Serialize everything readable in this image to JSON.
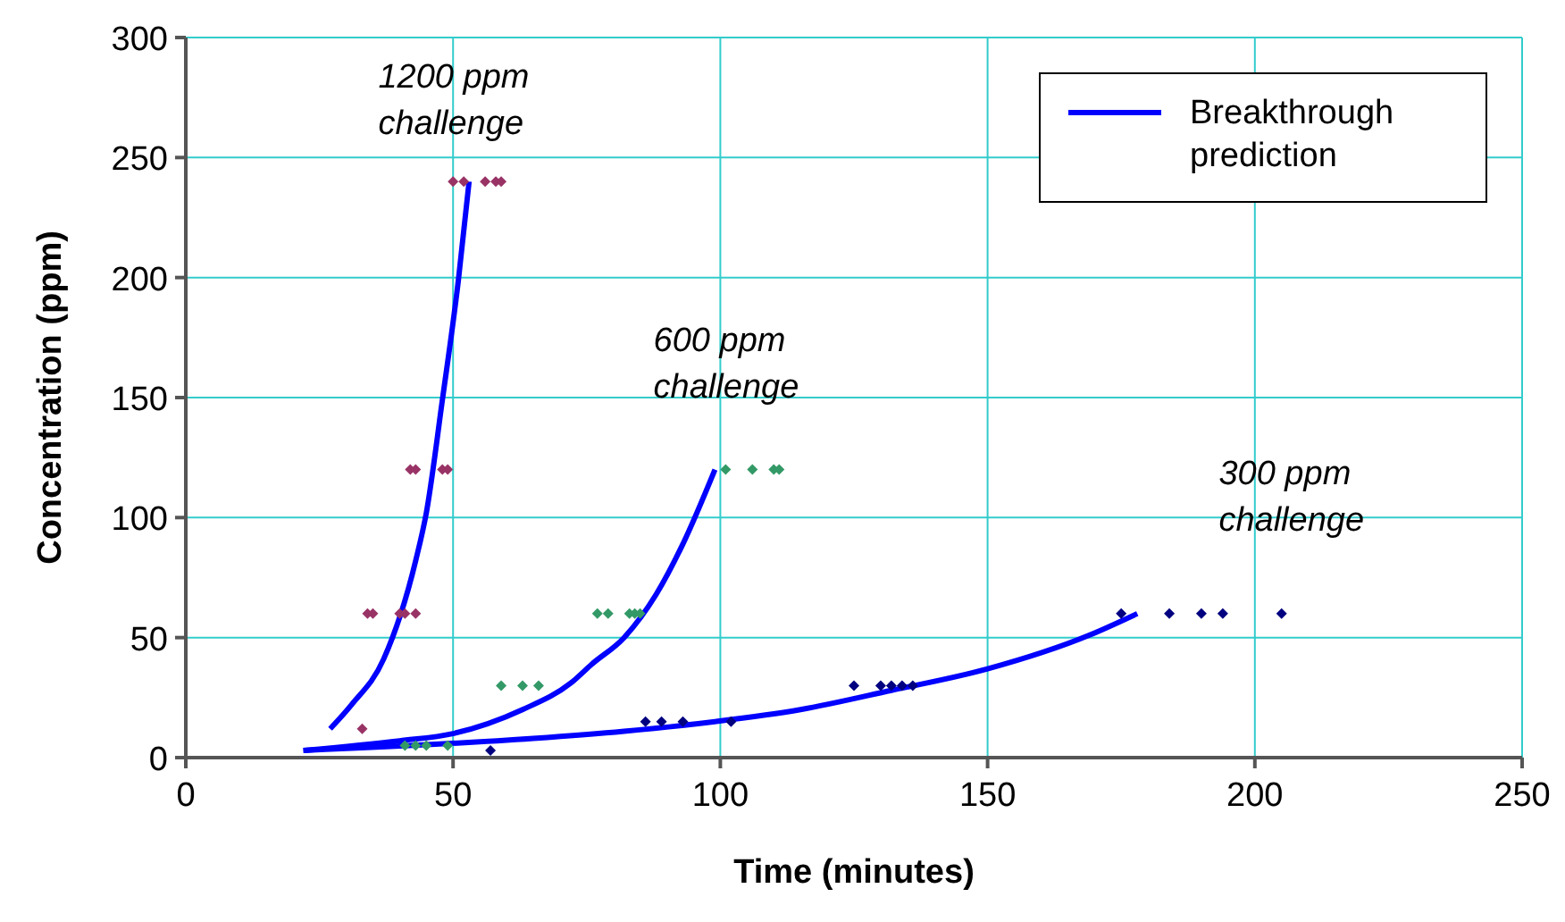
{
  "chart_data": {
    "type": "scatter",
    "xlabel": "Time (minutes)",
    "ylabel": "Concentration (ppm)",
    "xlim": [
      0,
      250
    ],
    "xticks": [
      0,
      50,
      100,
      150,
      200,
      250
    ],
    "ylim": [
      0,
      300
    ],
    "yticks": [
      0,
      50,
      100,
      150,
      200,
      250,
      300
    ],
    "grid": true,
    "legend": "top right",
    "marker": "diamond",
    "series": [
      {
        "color": "#993366",
        "x": [
          50,
          52,
          56,
          58,
          59,
          42,
          43,
          48,
          49,
          34,
          35,
          40,
          41,
          43,
          33
        ],
        "values": [
          240,
          240,
          240,
          240,
          240,
          120,
          120,
          120,
          120,
          60,
          60,
          60,
          60,
          60,
          12
        ]
      },
      {
        "color": "#339966",
        "x": [
          101,
          106,
          110,
          111,
          77,
          79,
          83,
          84,
          85,
          59,
          63,
          66,
          41,
          43,
          45,
          49
        ],
        "values": [
          120,
          120,
          120,
          120,
          60,
          60,
          60,
          60,
          60,
          30,
          30,
          30,
          5,
          5,
          5,
          5
        ]
      },
      {
        "color": "#000080",
        "x": [
          57,
          86,
          89,
          93,
          102,
          125,
          130,
          132,
          134,
          136,
          175,
          184,
          190,
          194,
          205
        ],
        "values": [
          3,
          15,
          15,
          15,
          15,
          30,
          30,
          30,
          30,
          30,
          60,
          60,
          60,
          60,
          60
        ]
      },
      {
        "type": "line",
        "name": "Breakthrough prediction",
        "color": "#0000ff",
        "marker": "none",
        "x": [
          27,
          31,
          37,
          43,
          45,
          48,
          51,
          53
        ],
        "values": [
          12,
          22,
          41,
          82,
          102,
          149,
          199,
          240
        ]
      },
      {
        "type": "line",
        "color": "#0000ff",
        "marker": "none",
        "x": [
          22,
          40,
          50,
          63,
          72,
          76,
          82,
          88,
          93,
          99
        ],
        "values": [
          3,
          7,
          10,
          20,
          31,
          39,
          50,
          68,
          89,
          120
        ]
      },
      {
        "type": "line",
        "color": "#0000ff",
        "marker": "none",
        "x": [
          22,
          65,
          82,
          99,
          115,
          132,
          150,
          169,
          178
        ],
        "values": [
          3,
          8,
          11,
          15,
          20,
          28,
          37,
          51,
          60
        ]
      }
    ],
    "annotations": [
      "1200 ppm\nchallenge",
      "600 ppm\nchallenge",
      "300 ppm\nchallenge"
    ]
  }
}
